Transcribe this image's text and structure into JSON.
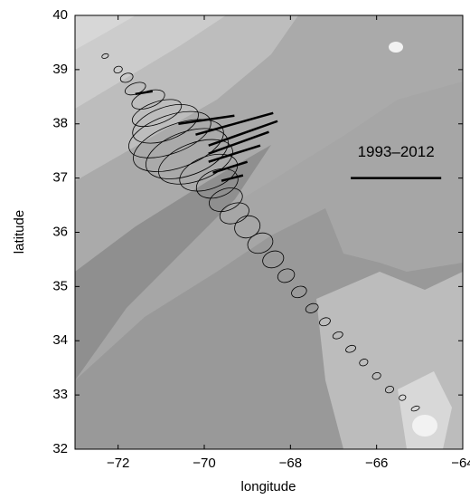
{
  "chart_data": {
    "type": "map",
    "xlabel": "longitude",
    "ylabel": "latitude",
    "xlim": [
      -73,
      -64
    ],
    "ylim": [
      32,
      40
    ],
    "xticks": [
      {
        "value": -72,
        "label": "−72"
      },
      {
        "value": -70,
        "label": "−70"
      },
      {
        "value": -68,
        "label": "−68"
      },
      {
        "value": -66,
        "label": "−66"
      },
      {
        "value": -64,
        "label": "−64"
      }
    ],
    "yticks": [
      32,
      33,
      34,
      35,
      36,
      37,
      38,
      39,
      40
    ],
    "scale_label": "1993–2012",
    "scale_bar": {
      "x": [
        -66.6,
        -64.5
      ],
      "y": [
        37,
        37
      ]
    },
    "ellipse_angle": -20,
    "ellipses": [
      {
        "lon": -72.3,
        "lat": 39.25,
        "a": 0.08,
        "b": 0.04
      },
      {
        "lon": -72.0,
        "lat": 39.0,
        "a": 0.1,
        "b": 0.06
      },
      {
        "lon": -71.8,
        "lat": 38.85,
        "a": 0.15,
        "b": 0.08
      },
      {
        "lon": -71.6,
        "lat": 38.65,
        "a": 0.25,
        "b": 0.1
      },
      {
        "lon": -71.3,
        "lat": 38.45,
        "a": 0.4,
        "b": 0.15
      },
      {
        "lon": -71.1,
        "lat": 38.2,
        "a": 0.6,
        "b": 0.2
      },
      {
        "lon": -70.9,
        "lat": 38.0,
        "a": 0.8,
        "b": 0.3
      },
      {
        "lon": -70.8,
        "lat": 37.8,
        "a": 1.0,
        "b": 0.35
      },
      {
        "lon": -70.6,
        "lat": 37.6,
        "a": 1.1,
        "b": 0.4
      },
      {
        "lon": -70.4,
        "lat": 37.45,
        "a": 1.0,
        "b": 0.4
      },
      {
        "lon": -70.2,
        "lat": 37.3,
        "a": 0.9,
        "b": 0.35
      },
      {
        "lon": -69.9,
        "lat": 37.1,
        "a": 0.7,
        "b": 0.3
      },
      {
        "lon": -69.7,
        "lat": 36.9,
        "a": 0.5,
        "b": 0.25
      },
      {
        "lon": -69.5,
        "lat": 36.6,
        "a": 0.4,
        "b": 0.2
      },
      {
        "lon": -69.3,
        "lat": 36.35,
        "a": 0.35,
        "b": 0.18
      },
      {
        "lon": -69.0,
        "lat": 36.1,
        "a": 0.3,
        "b": 0.2
      },
      {
        "lon": -68.7,
        "lat": 35.8,
        "a": 0.3,
        "b": 0.18
      },
      {
        "lon": -68.4,
        "lat": 35.5,
        "a": 0.25,
        "b": 0.15
      },
      {
        "lon": -68.1,
        "lat": 35.2,
        "a": 0.2,
        "b": 0.12
      },
      {
        "lon": -67.8,
        "lat": 34.9,
        "a": 0.18,
        "b": 0.1
      },
      {
        "lon": -67.5,
        "lat": 34.6,
        "a": 0.15,
        "b": 0.08
      },
      {
        "lon": -67.2,
        "lat": 34.35,
        "a": 0.13,
        "b": 0.07
      },
      {
        "lon": -66.9,
        "lat": 34.1,
        "a": 0.12,
        "b": 0.06
      },
      {
        "lon": -66.6,
        "lat": 33.85,
        "a": 0.12,
        "b": 0.06
      },
      {
        "lon": -66.3,
        "lat": 33.6,
        "a": 0.1,
        "b": 0.06
      },
      {
        "lon": -66.0,
        "lat": 33.35,
        "a": 0.1,
        "b": 0.06
      },
      {
        "lon": -65.7,
        "lat": 33.1,
        "a": 0.1,
        "b": 0.06
      },
      {
        "lon": -65.4,
        "lat": 32.95,
        "a": 0.08,
        "b": 0.05
      },
      {
        "lon": -65.1,
        "lat": 32.75,
        "a": 0.1,
        "b": 0.04
      }
    ],
    "trends": [
      {
        "x": [
          -71.6,
          -71.2
        ],
        "y": [
          38.55,
          38.6
        ]
      },
      {
        "x": [
          -70.6,
          -69.3
        ],
        "y": [
          38.0,
          38.15
        ]
      },
      {
        "x": [
          -70.2,
          -68.4
        ],
        "y": [
          37.8,
          38.2
        ]
      },
      {
        "x": [
          -69.9,
          -68.3
        ],
        "y": [
          37.6,
          38.05
        ]
      },
      {
        "x": [
          -69.9,
          -68.5
        ],
        "y": [
          37.45,
          37.85
        ]
      },
      {
        "x": [
          -69.9,
          -68.7
        ],
        "y": [
          37.3,
          37.6
        ]
      },
      {
        "x": [
          -69.8,
          -69.0
        ],
        "y": [
          37.1,
          37.3
        ]
      },
      {
        "x": [
          -69.6,
          -69.1
        ],
        "y": [
          36.95,
          37.05
        ]
      }
    ]
  }
}
